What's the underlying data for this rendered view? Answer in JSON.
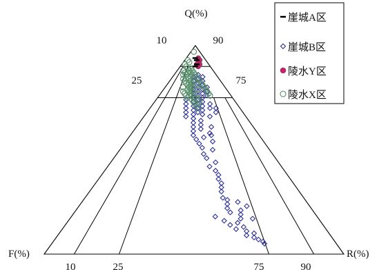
{
  "chart_data": {
    "type": "scatter",
    "subtype": "ternary",
    "apex_labels": {
      "top": "Q(%)",
      "left": "F(%)",
      "right": "R(%)"
    },
    "tick_labels": {
      "top_left": "10",
      "top_right": "90",
      "upper_left": "25",
      "upper_right": "75",
      "bottom_10": "10",
      "bottom_25": "25",
      "bottom_75": "75",
      "bottom_90": "90"
    },
    "field_boundaries": [
      "Q=90",
      "Q=75",
      "R/(F+R)=0.10",
      "R/(F+R)=0.25",
      "R/(F+R)=0.75",
      "R/(F+R)=0.90"
    ],
    "legend_position": "top-right",
    "colors": {
      "A": "#000000",
      "B": "#2b2f9a",
      "Y": "#d01b6f",
      "X": "#4f8a63",
      "axis": "#000000"
    },
    "series": [
      {
        "name": "崖城A区",
        "marker": "dash",
        "points": [
          [
            94,
            3
          ],
          [
            93,
            4
          ],
          [
            91,
            5
          ],
          [
            90,
            5
          ]
        ]
      },
      {
        "name": "崖城B区",
        "marker": "open-diamond",
        "points": [
          [
            86,
            8
          ],
          [
            85,
            7
          ],
          [
            84,
            9
          ],
          [
            83,
            8
          ],
          [
            82,
            10
          ],
          [
            81,
            9
          ],
          [
            80,
            11
          ],
          [
            79,
            10
          ],
          [
            78,
            12
          ],
          [
            77,
            11
          ],
          [
            76,
            13
          ],
          [
            75,
            12
          ],
          [
            74,
            14
          ],
          [
            73,
            13
          ],
          [
            72,
            15
          ],
          [
            71,
            14
          ],
          [
            70,
            16
          ],
          [
            69,
            15
          ],
          [
            68,
            17
          ],
          [
            67,
            16
          ],
          [
            85,
            10
          ],
          [
            83,
            11
          ],
          [
            81,
            12
          ],
          [
            79,
            13
          ],
          [
            77,
            14
          ],
          [
            75,
            15
          ],
          [
            73,
            16
          ],
          [
            71,
            17
          ],
          [
            69,
            18
          ],
          [
            67,
            19
          ],
          [
            74,
            10
          ],
          [
            72,
            11
          ],
          [
            70,
            12
          ],
          [
            68,
            13
          ],
          [
            66,
            14
          ],
          [
            80,
            14
          ],
          [
            78,
            15
          ],
          [
            76,
            16
          ],
          [
            72,
            19
          ],
          [
            70,
            20
          ],
          [
            65,
            17
          ],
          [
            63,
            18
          ],
          [
            61,
            19
          ],
          [
            64,
            20
          ],
          [
            62,
            21
          ],
          [
            60,
            22
          ],
          [
            59,
            20
          ],
          [
            57,
            21
          ],
          [
            55,
            23
          ],
          [
            56,
            25
          ],
          [
            58,
            26
          ],
          [
            66,
            22
          ],
          [
            68,
            23
          ],
          [
            70,
            22
          ],
          [
            61,
            25
          ],
          [
            57,
            27
          ],
          [
            53,
            25
          ],
          [
            51,
            27
          ],
          [
            54,
            29
          ],
          [
            48,
            29
          ],
          [
            50,
            31
          ],
          [
            46,
            31
          ],
          [
            42,
            34
          ],
          [
            44,
            35
          ],
          [
            40,
            37
          ],
          [
            38,
            39
          ],
          [
            36,
            40
          ],
          [
            34,
            42
          ],
          [
            32,
            43
          ],
          [
            30,
            44
          ],
          [
            27,
            46
          ],
          [
            26,
            48
          ],
          [
            24,
            49
          ],
          [
            22,
            50
          ],
          [
            20,
            52
          ],
          [
            21,
            55
          ],
          [
            19,
            56
          ],
          [
            17,
            57
          ],
          [
            15,
            57
          ],
          [
            13,
            60
          ],
          [
            11,
            62
          ],
          [
            9,
            63
          ],
          [
            16,
            52
          ],
          [
            18,
            48
          ],
          [
            14,
            55
          ],
          [
            12,
            58
          ],
          [
            25,
            52
          ],
          [
            23,
            56
          ],
          [
            17,
            61
          ],
          [
            10,
            65
          ],
          [
            8,
            66
          ],
          [
            7,
            68
          ],
          [
            6,
            70
          ],
          [
            5,
            71
          ]
        ]
      },
      {
        "name": "陵水Y区",
        "marker": "filled-circle",
        "points": [
          [
            94,
            4
          ],
          [
            93,
            5
          ],
          [
            92,
            5
          ],
          [
            91,
            6
          ],
          [
            91,
            5
          ],
          [
            90,
            6
          ]
        ]
      },
      {
        "name": "陵水X区",
        "marker": "open-circle",
        "points": [
          [
            97,
            1
          ],
          [
            93,
            1
          ],
          [
            92,
            2
          ],
          [
            91,
            1
          ],
          [
            90,
            2
          ],
          [
            89,
            3
          ],
          [
            88,
            2
          ],
          [
            87,
            3
          ],
          [
            86,
            4
          ],
          [
            85,
            5
          ],
          [
            84,
            4
          ],
          [
            83,
            5
          ],
          [
            82,
            6
          ],
          [
            81,
            7
          ],
          [
            80,
            6
          ],
          [
            79,
            8
          ],
          [
            78,
            7
          ],
          [
            77,
            8
          ],
          [
            76,
            9
          ],
          [
            75,
            10
          ],
          [
            88,
            5
          ],
          [
            87,
            6
          ],
          [
            86,
            7
          ],
          [
            85,
            8
          ],
          [
            84,
            9
          ],
          [
            83,
            10
          ],
          [
            82,
            11
          ],
          [
            81,
            12
          ],
          [
            80,
            13
          ],
          [
            79,
            14
          ],
          [
            78,
            15
          ],
          [
            77,
            16
          ],
          [
            76,
            17
          ],
          [
            86,
            3
          ],
          [
            84,
            6
          ],
          [
            82,
            8
          ],
          [
            80,
            9
          ],
          [
            78,
            10
          ],
          [
            76,
            11
          ],
          [
            74,
            12
          ],
          [
            88,
            4
          ],
          [
            87,
            5
          ],
          [
            85,
            6
          ],
          [
            83,
            7
          ],
          [
            81,
            8
          ],
          [
            79,
            9
          ],
          [
            77,
            10
          ],
          [
            75,
            12
          ],
          [
            73,
            13
          ],
          [
            71,
            15
          ],
          [
            89,
            4
          ],
          [
            87,
            4
          ],
          [
            84,
            5
          ],
          [
            82,
            7
          ],
          [
            80,
            8
          ],
          [
            78,
            9
          ],
          [
            76,
            10
          ],
          [
            74,
            14
          ],
          [
            72,
            14
          ],
          [
            70,
            16
          ],
          [
            86,
            6
          ],
          [
            83,
            8
          ],
          [
            81,
            10
          ],
          [
            79,
            11
          ],
          [
            77,
            12
          ],
          [
            75,
            13
          ],
          [
            73,
            15
          ]
        ]
      }
    ]
  }
}
